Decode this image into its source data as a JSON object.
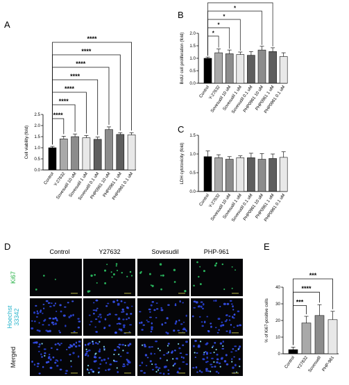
{
  "colors": {
    "black": "#000000",
    "gray1": "#a9a9a9",
    "gray2": "#8c8c8c",
    "gray3": "#d9d9d9",
    "gray4": "#5e5e5e",
    "light": "#e8e8e8",
    "cyan": "#27b4cc",
    "green": "#20b040"
  },
  "chart_data": [
    {
      "panel": "A",
      "type": "bar",
      "categories": [
        "Control",
        "Y-27632",
        "Sovesudil 10 uM",
        "Sovesudil 1 uM",
        "Sovesudil 0.1 uM",
        "PHP0961 10 uM",
        "PHP0961 1 uM",
        "PHP0961 0.1 uM"
      ],
      "values": [
        1.0,
        1.4,
        1.5,
        1.45,
        1.38,
        1.82,
        1.6,
        1.58
      ],
      "errors": [
        0.06,
        0.12,
        0.12,
        0.1,
        0.1,
        0.12,
        0.08,
        0.1
      ],
      "ylabel": "Cell viability (fold)",
      "ylim": [
        0,
        2.5
      ],
      "yticks": [
        "0.0",
        "0.5",
        "1.0",
        "1.5",
        "2.0",
        "2.5"
      ],
      "significance": [
        "****",
        "****",
        "****",
        "****",
        "****",
        "****",
        "****"
      ]
    },
    {
      "panel": "B",
      "type": "bar",
      "categories": [
        "Control",
        "Y-27632",
        "Sovesudil 10 uM",
        "Sovesudil 1 uM",
        "Sovesudil 0.1 uM",
        "PHP0961 10 uM",
        "PHP0961 1 uM",
        "PHP0961 0.1 uM"
      ],
      "values": [
        1.0,
        1.22,
        1.18,
        1.15,
        1.12,
        1.33,
        1.27,
        1.07
      ],
      "errors": [
        0.05,
        0.15,
        0.15,
        0.1,
        0.15,
        0.15,
        0.15,
        0.15
      ],
      "ylabel": "BrdU cell proliferation (fold)",
      "ylim": [
        0,
        2.0
      ],
      "yticks": [
        "0.0",
        "0.5",
        "1.0",
        "1.5",
        "2.0"
      ],
      "significance": [
        "*",
        "*",
        "*",
        "*",
        "*"
      ]
    },
    {
      "panel": "C",
      "type": "bar",
      "categories": [
        "Control",
        "Y-27632",
        "Sovesudil 10 uM",
        "Sovesudil 1 uM",
        "Sovesudil 0.1 uM",
        "PHP0961 10 uM",
        "PHP0961 1 uM",
        "PHP0961 0.1 uM"
      ],
      "values": [
        0.93,
        0.9,
        0.86,
        0.9,
        0.9,
        0.86,
        0.88,
        0.91
      ],
      "errors": [
        0.15,
        0.08,
        0.07,
        0.05,
        0.12,
        0.15,
        0.12,
        0.15
      ],
      "ylabel": "LDH cytotoxicity (fold)",
      "ylim": [
        0,
        1.5
      ],
      "yticks": [
        "0.0",
        "0.5",
        "1.0",
        "1.5"
      ],
      "significance": []
    },
    {
      "panel": "E",
      "type": "bar",
      "categories": [
        "Control",
        "Y27632",
        "Sovesudil",
        "PHP-961"
      ],
      "values": [
        2.5,
        18.5,
        23.0,
        20.5
      ],
      "errors": [
        1.5,
        4.0,
        6.5,
        5.0
      ],
      "ylabel": "% of Ki67-positive cells",
      "ylim": [
        0,
        40
      ],
      "yticks": [
        "0",
        "10",
        "20",
        "30",
        "40"
      ],
      "significance": [
        "***",
        "****",
        "***"
      ]
    }
  ],
  "panels": {
    "A": "A",
    "B": "B",
    "C": "C",
    "D": "D",
    "E": "E"
  },
  "micrographs": {
    "columns": [
      "Control",
      "Y27632",
      "Sovesudil",
      "PHP-961"
    ],
    "rows": [
      {
        "label": "Ki67",
        "color": "#20b040"
      },
      {
        "label": "Hoechst 33342",
        "color": "#27b4cc"
      },
      {
        "label": "Merged",
        "color": "#111111"
      }
    ]
  }
}
